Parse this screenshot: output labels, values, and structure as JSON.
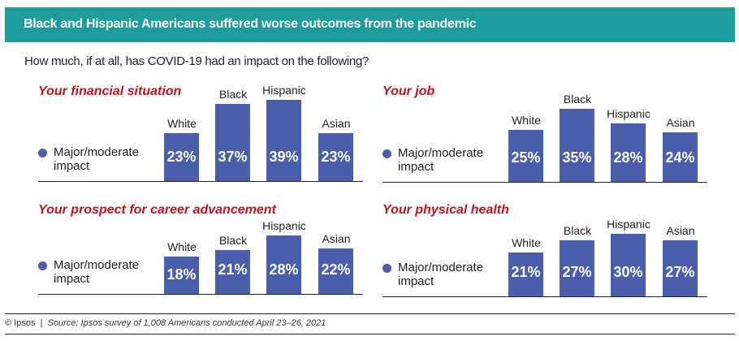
{
  "header": {
    "title": "Black and Hispanic Americans suffered worse outcomes from the pandemic"
  },
  "question": "How much, if at all, has COVID-19 had an impact on the following?",
  "footer": {
    "copyright": "© Ipsos",
    "separator": "|",
    "source": "Source:  Ipsos survey of 1,008 Americans conducted April 23–26, 2021"
  },
  "colors": {
    "bar": "#4a5eab",
    "title": "#c0141c",
    "banner": "#1e9c9b"
  },
  "chart_data": [
    {
      "type": "bar",
      "title": "Your financial situation",
      "legend": "Major/moderate impact",
      "categories": [
        "White",
        "Black",
        "Hispanic",
        "Asian"
      ],
      "values": [
        23,
        37,
        39,
        23
      ],
      "value_labels": [
        "23%",
        "37%",
        "39%",
        "23%"
      ]
    },
    {
      "type": "bar",
      "title": "Your job",
      "legend": "Major/moderate impact",
      "categories": [
        "White",
        "Black",
        "Hispanic",
        "Asian"
      ],
      "values": [
        25,
        35,
        28,
        24
      ],
      "value_labels": [
        "25%",
        "35%",
        "28%",
        "24%"
      ]
    },
    {
      "type": "bar",
      "title": "Your prospect for career advancement",
      "legend": "Major/moderate impact",
      "categories": [
        "White",
        "Black",
        "Hispanic",
        "Asian"
      ],
      "values": [
        18,
        21,
        28,
        22
      ],
      "value_labels": [
        "18%",
        "21%",
        "28%",
        "22%"
      ]
    },
    {
      "type": "bar",
      "title": "Your physical health",
      "legend": "Major/moderate impact",
      "categories": [
        "White",
        "Black",
        "Hispanic",
        "Asian"
      ],
      "values": [
        21,
        27,
        30,
        27
      ],
      "value_labels": [
        "21%",
        "27%",
        "30%",
        "27%"
      ]
    }
  ]
}
